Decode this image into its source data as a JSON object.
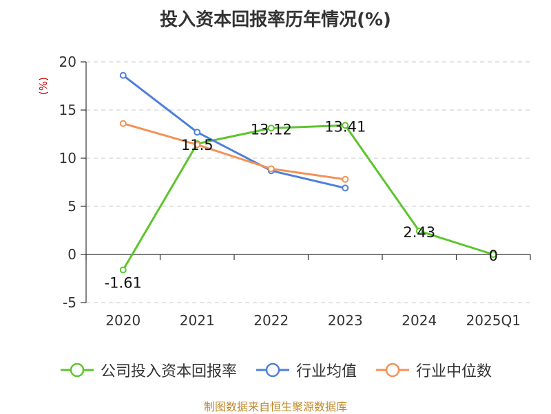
{
  "title": "投入资本回报率历年情况(%)",
  "source": "制图数据来自恒生聚源数据库",
  "chart_data": {
    "type": "line",
    "ylabel": "(%)",
    "ylim": [
      -5,
      20
    ],
    "yticks": [
      -5,
      0,
      5,
      10,
      15,
      20
    ],
    "categories": [
      "2020",
      "2021",
      "2022",
      "2023",
      "2024",
      "2025Q1"
    ],
    "grid": true,
    "legend_placement": "bottom",
    "series": [
      {
        "name": "公司投入资本回报率",
        "color": "#5cc52c",
        "values": [
          -1.61,
          11.5,
          13.12,
          13.41,
          2.43,
          0
        ],
        "labels": [
          "-1.61",
          "11.5",
          "13.12",
          "13.41",
          "2.43",
          "0"
        ]
      },
      {
        "name": "行业均值",
        "color": "#4e7fdc",
        "values": [
          18.6,
          12.7,
          8.7,
          6.9,
          null,
          null
        ],
        "labels": []
      },
      {
        "name": "行业中位数",
        "color": "#f49156",
        "values": [
          13.6,
          11.4,
          8.9,
          7.8,
          null,
          null
        ],
        "labels": []
      }
    ]
  }
}
